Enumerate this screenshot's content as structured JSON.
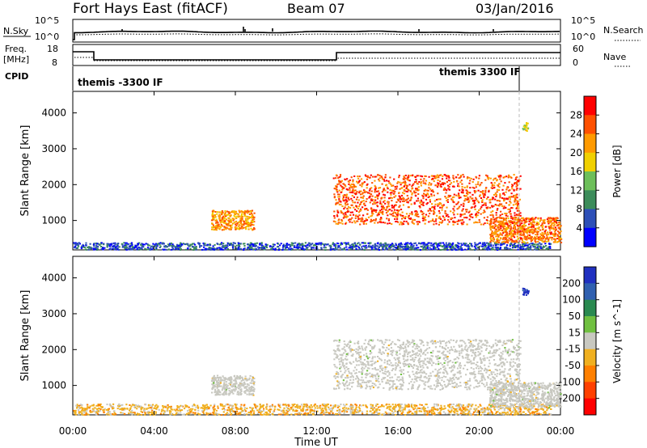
{
  "header": {
    "title": "Fort Hays East (fitACF)",
    "beam": "Beam 07",
    "date": "03/Jan/2016"
  },
  "top_panels": {
    "nsky_label": "N.Sky",
    "nsearch_label": "N.Search",
    "nsky_ticks": [
      "10^5",
      "10^0"
    ],
    "nsearch_ticks": [
      "10^5",
      "10^0"
    ],
    "freq_label_1": "Freq.",
    "freq_label_2": "[MHz]",
    "freq_ticks": [
      "18",
      "8"
    ],
    "nave_ticks": [
      "60",
      "0"
    ],
    "nave_label": "Nave",
    "cpid_label": "CPID",
    "cpid_segments": [
      "themis -3300 IF",
      "themis 3300 IF"
    ]
  },
  "colors": {
    "power_scale": [
      "#0000ff",
      "#2d4fb7",
      "#3c8c5a",
      "#6dbf5a",
      "#f0d000",
      "#ff9a00",
      "#ff5000",
      "#ff0000"
    ],
    "velocity_scale": [
      "#2030c0",
      "#3060b0",
      "#2a8a50",
      "#70c040",
      "#c8c8c0",
      "#f0b020",
      "#ff8000",
      "#ff4000",
      "#ff0000"
    ],
    "scatter_gray": "#c8c8c0"
  },
  "chart_data": [
    {
      "type": "heatmap",
      "title": "Power",
      "xlabel": "",
      "ylabel": "Slant Range [km]",
      "xlim": [
        "00:00",
        "24:00"
      ],
      "x_ticks": [
        "00:00",
        "04:00",
        "08:00",
        "12:00",
        "16:00",
        "20:00",
        "00:00"
      ],
      "ylim": [
        180,
        4600
      ],
      "y_ticks": [
        1000,
        2000,
        3000,
        4000
      ],
      "colorbar_label": "Power [dB]",
      "colorbar_ticks": [
        4,
        8,
        12,
        16,
        20,
        24,
        28
      ],
      "regions": [
        {
          "name": "near-range low-power echoes",
          "t": [
            0.0,
            23.5
          ],
          "range_km": [
            200,
            400
          ],
          "power_db": 6
        },
        {
          "name": "morning patch",
          "t": [
            6.8,
            8.9
          ],
          "range_km": [
            750,
            1300
          ],
          "power_db": 22
        },
        {
          "name": "main evening band",
          "t": [
            12.8,
            22.0
          ],
          "range_km": [
            900,
            2300
          ],
          "power_db": 26
        },
        {
          "name": "late near band",
          "t": [
            20.5,
            24.0
          ],
          "range_km": [
            400,
            1100
          ],
          "power_db": 24
        },
        {
          "name": "far-range blob",
          "t": [
            22.1,
            22.4
          ],
          "range_km": [
            3500,
            3750
          ],
          "power_db": 18
        }
      ]
    },
    {
      "type": "heatmap",
      "title": "Velocity",
      "xlabel": "Time UT",
      "ylabel": "Slant Range [km]",
      "xlim": [
        "00:00",
        "24:00"
      ],
      "x_ticks": [
        "00:00",
        "04:00",
        "08:00",
        "12:00",
        "16:00",
        "20:00",
        "00:00"
      ],
      "ylim": [
        180,
        4600
      ],
      "y_ticks": [
        1000,
        2000,
        3000,
        4000
      ],
      "colorbar_label": "Velocity [m s^-1]",
      "colorbar_ticks": [
        200,
        100,
        50,
        15,
        -15,
        -50,
        -100,
        -200
      ],
      "regions": [
        {
          "name": "near-range echoes",
          "t": [
            0.0,
            23.5
          ],
          "range_km": [
            200,
            500
          ],
          "velocity_ms": -30
        },
        {
          "name": "morning ground scatter",
          "t": [
            6.8,
            8.9
          ],
          "range_km": [
            750,
            1300
          ],
          "velocity_ms": 0
        },
        {
          "name": "evening ground scatter",
          "t": [
            12.8,
            22.0
          ],
          "range_km": [
            900,
            2300
          ],
          "velocity_ms": 0
        },
        {
          "name": "late near band",
          "t": [
            20.5,
            24.0
          ],
          "range_km": [
            400,
            1100
          ],
          "velocity_ms": 0
        },
        {
          "name": "far-range blob",
          "t": [
            22.1,
            22.4
          ],
          "range_km": [
            3500,
            3750
          ],
          "velocity_ms": 220
        }
      ]
    }
  ]
}
